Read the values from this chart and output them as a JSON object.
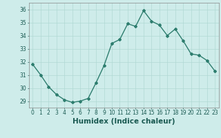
{
  "x": [
    0,
    1,
    2,
    3,
    4,
    5,
    6,
    7,
    8,
    9,
    10,
    11,
    12,
    13,
    14,
    15,
    16,
    17,
    18,
    19,
    20,
    21,
    22,
    23
  ],
  "y": [
    31.8,
    31.0,
    30.1,
    29.5,
    29.1,
    28.9,
    29.0,
    29.2,
    30.4,
    31.7,
    33.4,
    33.7,
    34.9,
    34.7,
    35.9,
    35.1,
    34.8,
    34.0,
    34.5,
    33.6,
    32.6,
    32.5,
    32.1,
    31.3
  ],
  "line_color": "#2d7d6e",
  "marker": "D",
  "markersize": 2.0,
  "linewidth": 1.0,
  "xlabel": "Humidex (Indice chaleur)",
  "xlim": [
    -0.5,
    23.5
  ],
  "ylim": [
    28.5,
    36.5
  ],
  "yticks": [
    29,
    30,
    31,
    32,
    33,
    34,
    35,
    36
  ],
  "xtick_labels": [
    "0",
    "1",
    "2",
    "3",
    "4",
    "5",
    "6",
    "7",
    "8",
    "9",
    "10",
    "11",
    "12",
    "13",
    "14",
    "15",
    "16",
    "17",
    "18",
    "19",
    "20",
    "21",
    "22",
    "23"
  ],
  "bg_color": "#ceecea",
  "grid_color": "#b0d8d4",
  "tick_fontsize": 5.5,
  "xlabel_fontsize": 7.5
}
